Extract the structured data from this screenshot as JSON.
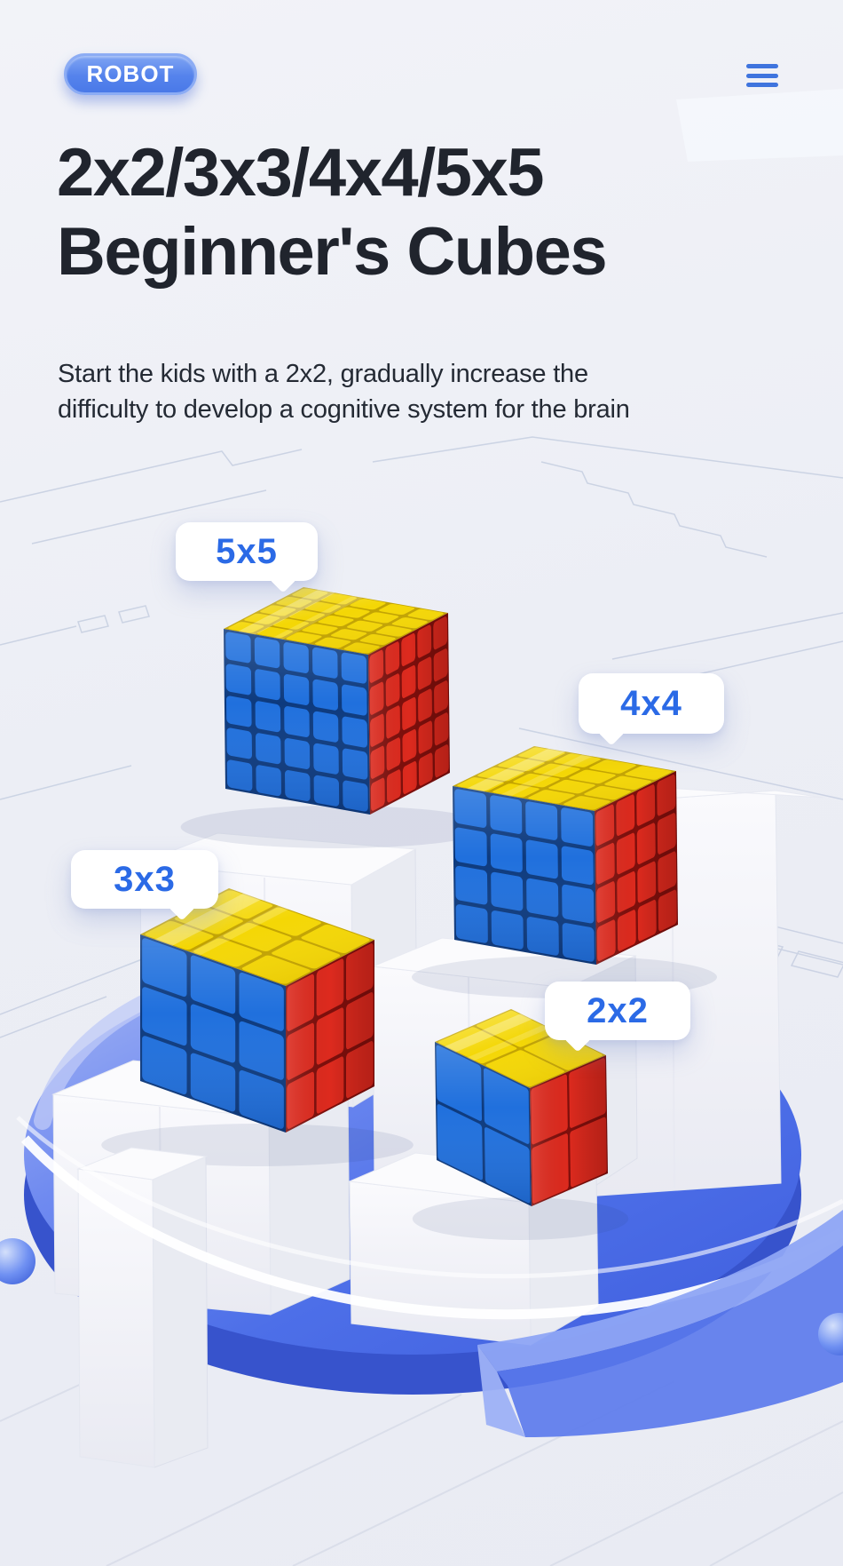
{
  "header": {
    "brand": "ROBOT"
  },
  "hero": {
    "title_line1": "2x2/3x3/4x4/5x5",
    "title_line2": "Beginner's Cubes",
    "subtitle_line1": "Start the kids with a 2x2, gradually increase the",
    "subtitle_line2": "difficulty to develop a cognitive system for the brain"
  },
  "scene": {
    "cubes": [
      {
        "label": "5x5",
        "grid": 5
      },
      {
        "label": "4x4",
        "grid": 4
      },
      {
        "label": "3x3",
        "grid": 3
      },
      {
        "label": "2x2",
        "grid": 2
      }
    ],
    "colors": {
      "sticker_top": "#f4d705",
      "sticker_top_gap": "#c2a300",
      "sticker_front": "#2070dd",
      "sticker_front_gap": "#0d3a7e",
      "sticker_right": "#dd2a1e",
      "sticker_right_gap": "#7e0f0c",
      "bubble_text": "#2b6ae6",
      "bubble_bg": "#ffffff",
      "badge_blue": "#4a79e8",
      "menu_icon_blue": "#3f74de",
      "platform_blue": "#4d6fe8",
      "title_color": "#20242d"
    }
  }
}
